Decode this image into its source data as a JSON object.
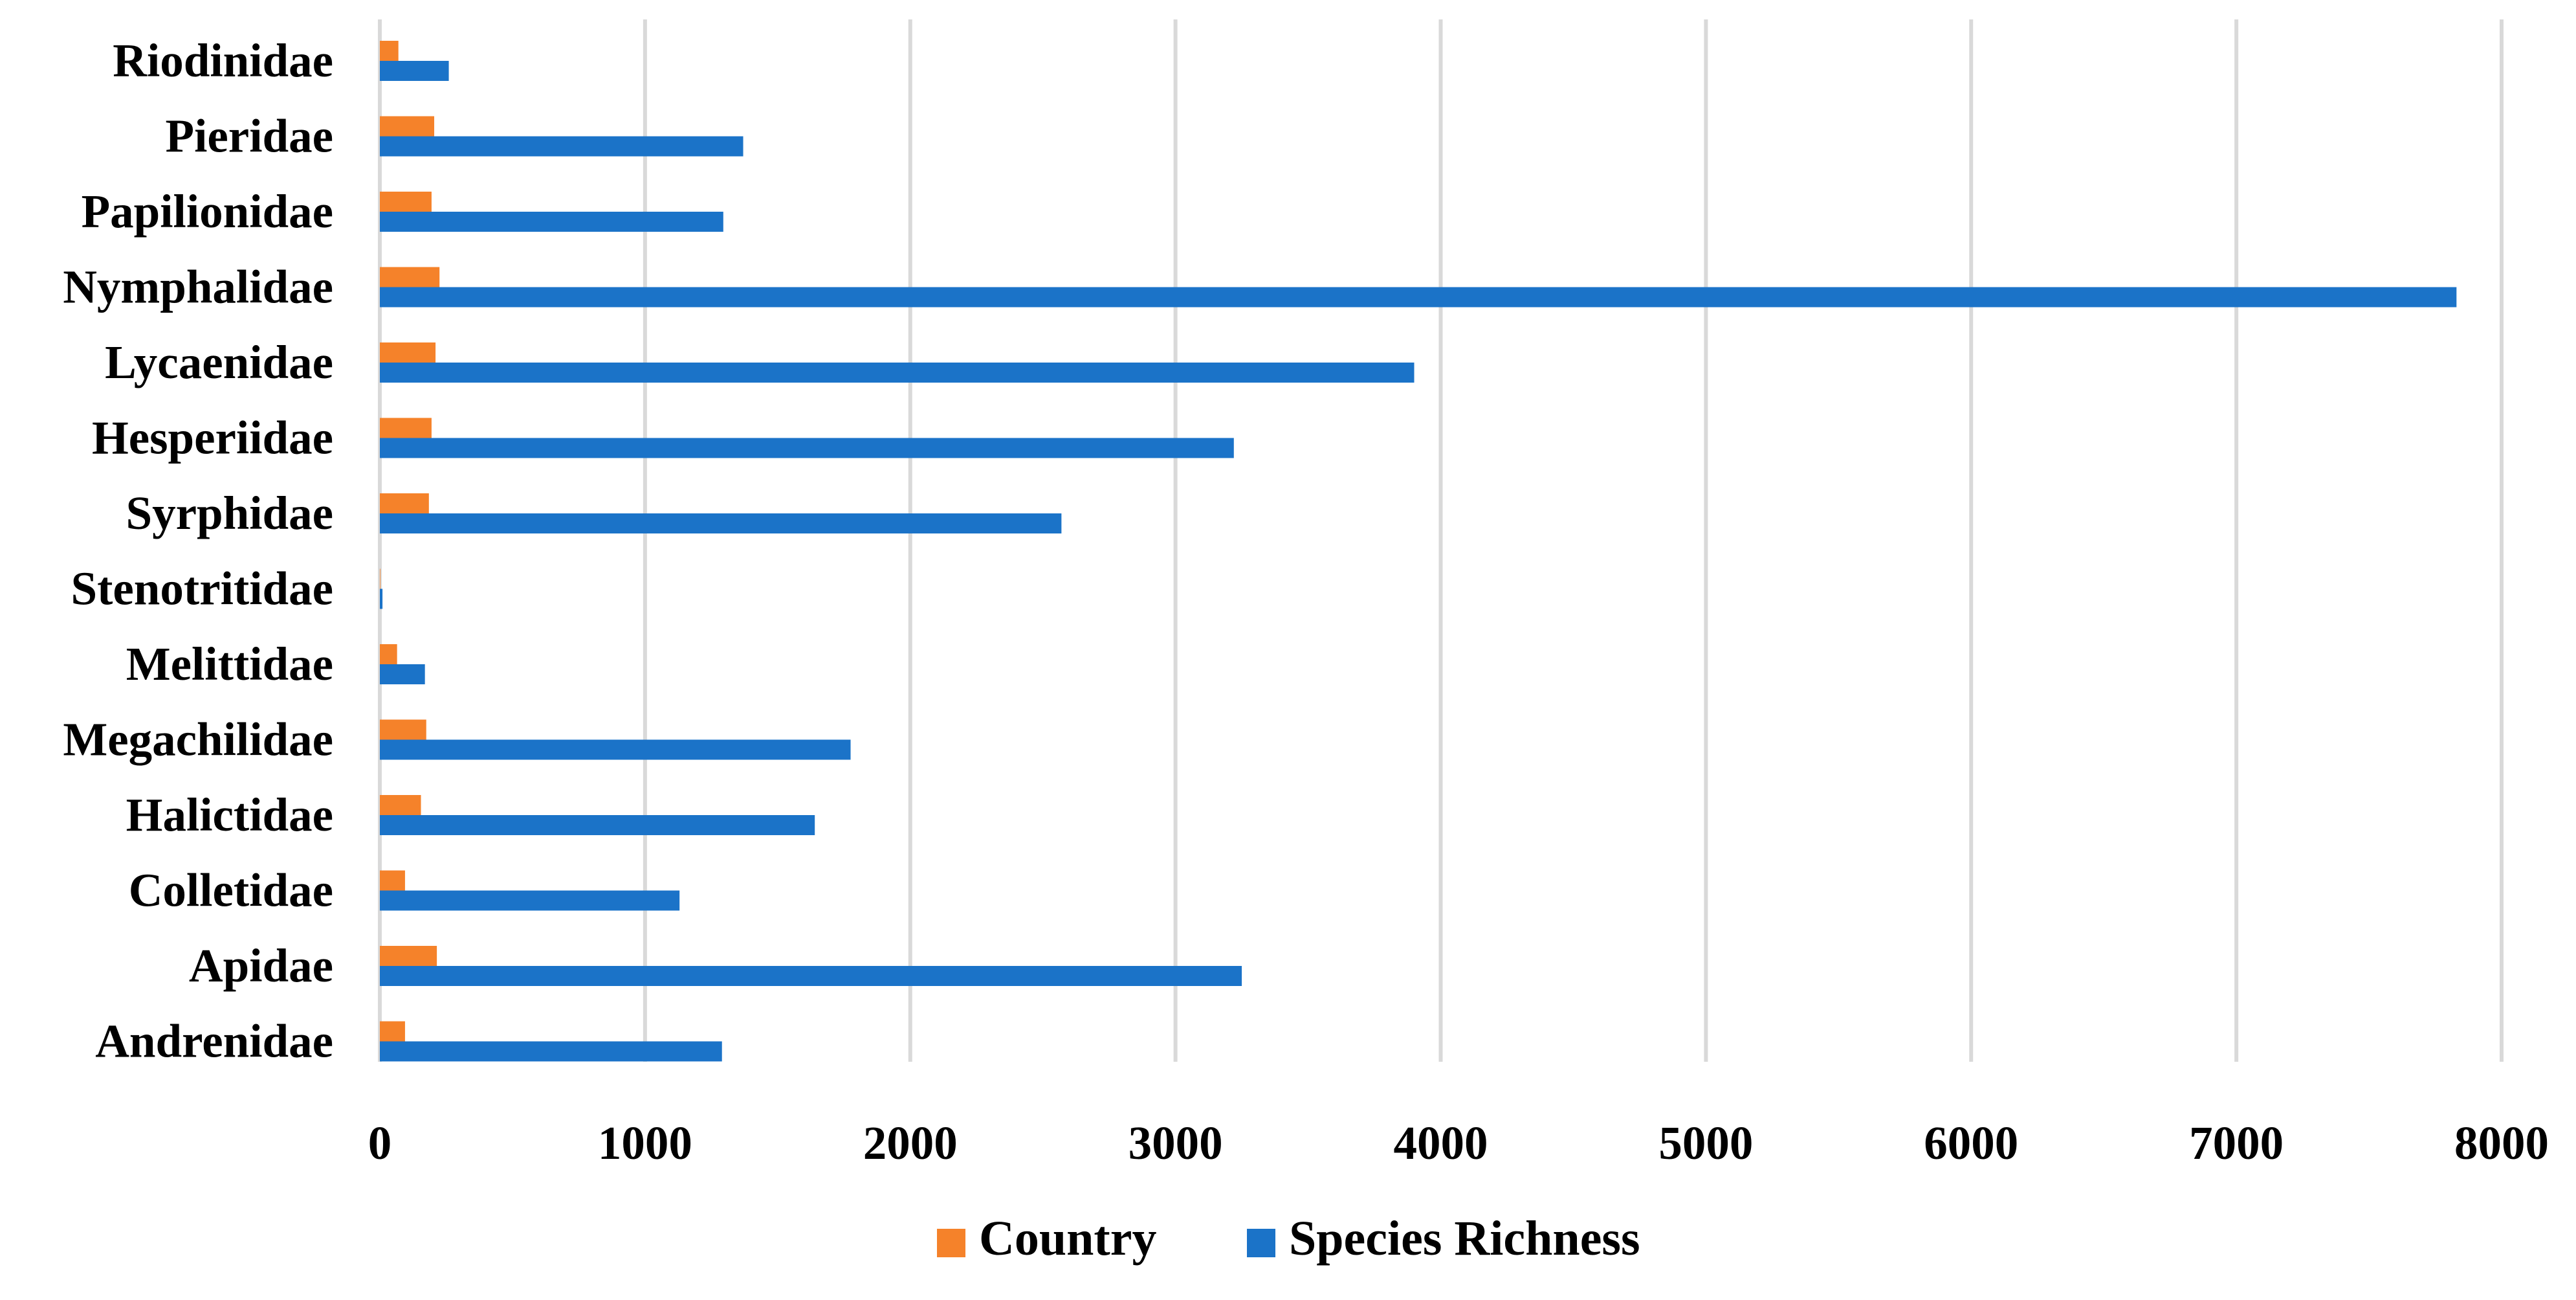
{
  "chart_data": {
    "type": "bar",
    "orientation": "horizontal",
    "title": "",
    "xlabel": "",
    "ylabel": "",
    "categories": [
      "Riodinidae",
      "Pieridae",
      "Papilionidae",
      "Nymphalidae",
      "Lycaenidae",
      "Hesperiidae",
      "Syrphidae",
      "Stenotritidae",
      "Melittidae",
      "Megachilidae",
      "Halictidae",
      "Colletidae",
      "Apidae",
      "Andrenidae"
    ],
    "series": [
      {
        "name": "Country",
        "color": "#f5822a",
        "values": [
          70,
          205,
          195,
          225,
          210,
          195,
          185,
          2,
          65,
          175,
          155,
          95,
          215,
          95
        ]
      },
      {
        "name": "Species Richness",
        "color": "#1b73c8",
        "values": [
          260,
          1370,
          1295,
          7830,
          3900,
          3220,
          2570,
          10,
          170,
          1775,
          1640,
          1130,
          3250,
          1290
        ]
      }
    ],
    "xlim": [
      0,
      8000
    ],
    "xticks": [
      "0",
      "1000",
      "2000",
      "3000",
      "4000",
      "5000",
      "6000",
      "7000",
      "8000"
    ],
    "xtick_values": [
      0,
      1000,
      2000,
      3000,
      4000,
      5000,
      6000,
      7000,
      8000
    ],
    "grid": true,
    "legend_position": "bottom-center"
  }
}
